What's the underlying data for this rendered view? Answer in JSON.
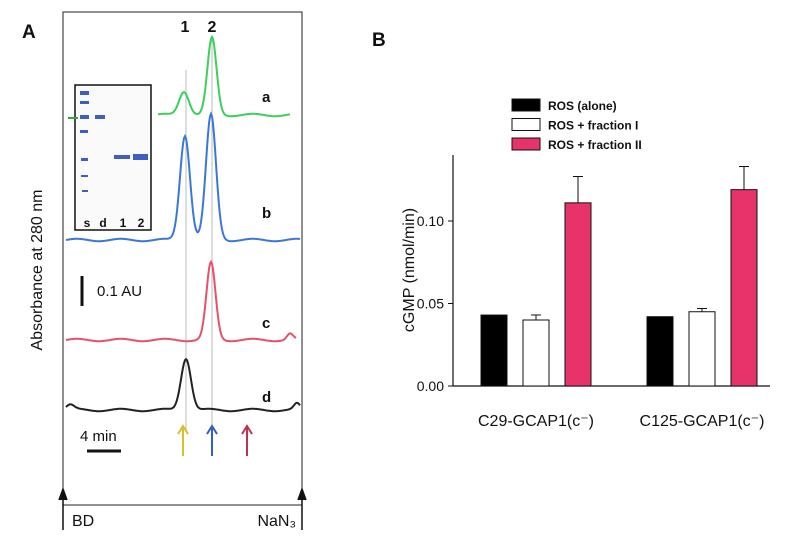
{
  "panel_a": {
    "letter": "A",
    "peak_labels": [
      "1",
      "2"
    ],
    "trace_labels": [
      "a",
      "b",
      "c",
      "d"
    ],
    "y_label": "Absorbance at 280 nm",
    "scale_au": "0.1 AU",
    "scale_time": "4 min",
    "gel_lanes": [
      "s",
      "d",
      "1",
      "2"
    ],
    "start_label": "BD",
    "end_label": "NaN₃"
  },
  "chart_data": {
    "type": "bar",
    "panel_letter": "B",
    "y_label": "cGMP (nmol/min)",
    "categories": [
      "C29-GCAP1(c⁻)",
      "C125-GCAP1(c⁻)"
    ],
    "series": [
      {
        "name": "ROS (alone)",
        "color": "#000000",
        "values": [
          0.043,
          0.042
        ]
      },
      {
        "name": "ROS + fraction I",
        "color": "#ffffff",
        "values": [
          0.04,
          0.045
        ],
        "errors": [
          0.003,
          0.002
        ]
      },
      {
        "name": "ROS + fraction II",
        "color": "#e8336a",
        "values": [
          0.111,
          0.119
        ],
        "errors": [
          0.016,
          0.014
        ]
      }
    ],
    "ylim": [
      0,
      0.14
    ],
    "yticks": [
      {
        "value": 0,
        "label": "0.00"
      },
      {
        "value": 0.05,
        "label": "0.05"
      },
      {
        "value": 0.1,
        "label": "0.10"
      }
    ],
    "legend": "top-left"
  }
}
